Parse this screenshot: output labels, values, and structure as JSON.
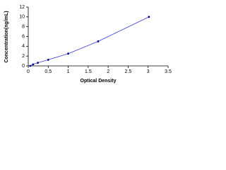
{
  "chart_data": {
    "type": "scatter",
    "x_label": "Optical Density",
    "y_label": "Concentration(ng/mL)",
    "x": [
      0.05,
      0.12,
      0.24,
      0.5,
      1.0,
      1.75,
      3.02
    ],
    "values": [
      0,
      0.31,
      0.63,
      1.25,
      2.5,
      5,
      10
    ],
    "color": "#00008b",
    "line_color": "#3b3bd6",
    "xlim": [
      0,
      3.5
    ],
    "xticks": [
      0,
      0.5,
      1,
      1.5,
      2,
      2.5,
      3,
      3.5
    ],
    "ylim": [
      0,
      12
    ],
    "yticks": [
      0,
      2,
      4,
      6,
      8,
      10,
      12
    ]
  }
}
